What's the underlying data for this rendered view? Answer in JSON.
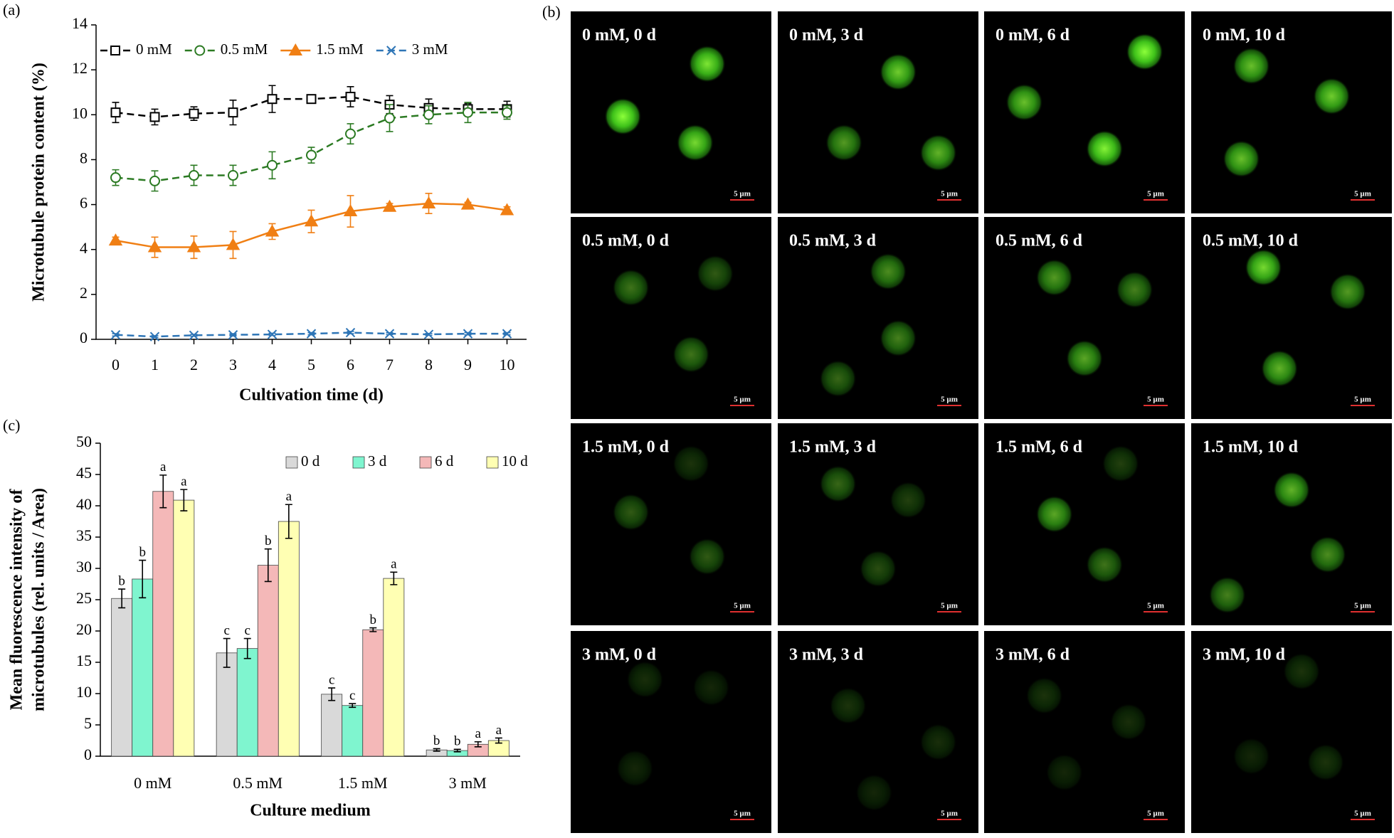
{
  "chart_data": [
    {
      "type": "line",
      "panel_label": "(a)",
      "x_label": "Cultivation time (d)",
      "y_label": "Microtubule protein content (%)",
      "x": [
        0,
        1,
        2,
        3,
        4,
        5,
        6,
        7,
        8,
        9,
        10
      ],
      "xlim": [
        -0.5,
        10.5
      ],
      "xticks": [
        0,
        1,
        2,
        3,
        4,
        5,
        6,
        7,
        8,
        9,
        10
      ],
      "ylim": [
        0,
        14
      ],
      "yticks": [
        0,
        2,
        4,
        6,
        8,
        10,
        12,
        14
      ],
      "series": [
        {
          "name": "0 mM",
          "color": "#000000",
          "marker": "square",
          "line_style": "dashed",
          "values": [
            10.1,
            9.9,
            10.05,
            10.1,
            10.7,
            10.7,
            10.8,
            10.45,
            10.3,
            10.25,
            10.25
          ],
          "errors": [
            0.45,
            0.35,
            0.3,
            0.55,
            0.6,
            0.1,
            0.45,
            0.4,
            0.4,
            0.25,
            0.35
          ]
        },
        {
          "name": "0.5 mM",
          "color": "#2b7a22",
          "marker": "circle",
          "line_style": "dashed",
          "values": [
            7.2,
            7.05,
            7.3,
            7.3,
            7.75,
            8.2,
            9.15,
            9.85,
            10.0,
            10.1,
            10.1
          ],
          "errors": [
            0.35,
            0.45,
            0.45,
            0.45,
            0.6,
            0.35,
            0.45,
            0.6,
            0.4,
            0.45,
            0.3
          ]
        },
        {
          "name": "1.5 mM",
          "color": "#f07f14",
          "marker": "triangle",
          "line_style": "solid",
          "values": [
            4.4,
            4.1,
            4.1,
            4.2,
            4.8,
            5.25,
            5.7,
            5.9,
            6.05,
            6.0,
            5.75
          ],
          "errors": [
            0.15,
            0.45,
            0.5,
            0.6,
            0.35,
            0.5,
            0.7,
            0.15,
            0.45,
            0.1,
            0.15
          ]
        },
        {
          "name": "3 mM",
          "color": "#2e75b6",
          "marker": "cross",
          "line_style": "dashed",
          "values": [
            0.2,
            0.12,
            0.18,
            0.2,
            0.22,
            0.25,
            0.3,
            0.25,
            0.22,
            0.25,
            0.25
          ],
          "errors": [
            0.05,
            0.04,
            0.04,
            0.05,
            0.05,
            0.05,
            0.05,
            0.04,
            0.04,
            0.05,
            0.05
          ]
        }
      ]
    },
    {
      "type": "bar",
      "panel_label": "(c)",
      "x_label": "Culture medium",
      "y_label": [
        "Mean fluorescence intensity of",
        "microtubules (rel. units / Area)"
      ],
      "categories": [
        "0 mM",
        "0.5 mM",
        "1.5 mM",
        "3 mM"
      ],
      "ylim": [
        0,
        50
      ],
      "yticks": [
        0,
        5,
        10,
        15,
        20,
        25,
        30,
        35,
        40,
        45,
        50
      ],
      "series": [
        {
          "name": "0 d",
          "color": "#d9d9d9",
          "values": [
            25.2,
            16.5,
            9.9,
            1.0
          ],
          "errors": [
            1.5,
            2.3,
            1.0,
            0.2
          ],
          "letters": [
            "b",
            "c",
            "c",
            "b"
          ]
        },
        {
          "name": "3 d",
          "color": "#7ff5cf",
          "values": [
            28.3,
            17.2,
            8.1,
            0.9
          ],
          "errors": [
            3.0,
            1.6,
            0.3,
            0.2
          ],
          "letters": [
            "b",
            "c",
            "c",
            "b"
          ]
        },
        {
          "name": "6 d",
          "color": "#f4b8b8",
          "values": [
            42.3,
            30.5,
            20.2,
            1.9
          ],
          "errors": [
            2.6,
            2.6,
            0.3,
            0.4
          ],
          "letters": [
            "a",
            "b",
            "b",
            "a"
          ]
        },
        {
          "name": "10 d",
          "color": "#ffffb3",
          "values": [
            40.9,
            37.5,
            28.4,
            2.5
          ],
          "errors": [
            1.7,
            2.7,
            1.0,
            0.4
          ],
          "letters": [
            "a",
            "a",
            "a",
            "a"
          ]
        }
      ]
    }
  ],
  "image_grid": {
    "label": "(b)",
    "panels": [
      {
        "title": "0 mM, 0 d",
        "scale_bar": "5 µm"
      },
      {
        "title": "0 mM, 3 d",
        "scale_bar": "5 µm"
      },
      {
        "title": "0 mM, 6 d",
        "scale_bar": "5 µm"
      },
      {
        "title": "0 mM, 10 d",
        "scale_bar": "5 µm"
      },
      {
        "title": "0.5 mM, 0 d",
        "scale_bar": "5 µm"
      },
      {
        "title": "0.5 mM, 3 d",
        "scale_bar": "5 µm"
      },
      {
        "title": "0.5 mM, 6 d",
        "scale_bar": "5 µm"
      },
      {
        "title": "0.5 mM, 10 d",
        "scale_bar": "5 µm"
      },
      {
        "title": "1.5 mM, 0 d",
        "scale_bar": "5 µm"
      },
      {
        "title": "1.5 mM, 3 d",
        "scale_bar": "5 µm"
      },
      {
        "title": "1.5 mM, 6 d",
        "scale_bar": "5 µm"
      },
      {
        "title": "1.5 mM, 10 d",
        "scale_bar": "5 µm"
      },
      {
        "title": "3 mM, 0 d",
        "scale_bar": "5 µm"
      },
      {
        "title": "3 mM, 3 d",
        "scale_bar": "5 µm"
      },
      {
        "title": "3 mM, 6 d",
        "scale_bar": "5 µm"
      },
      {
        "title": "3 mM, 10 d",
        "scale_bar": "5 µm"
      }
    ]
  }
}
